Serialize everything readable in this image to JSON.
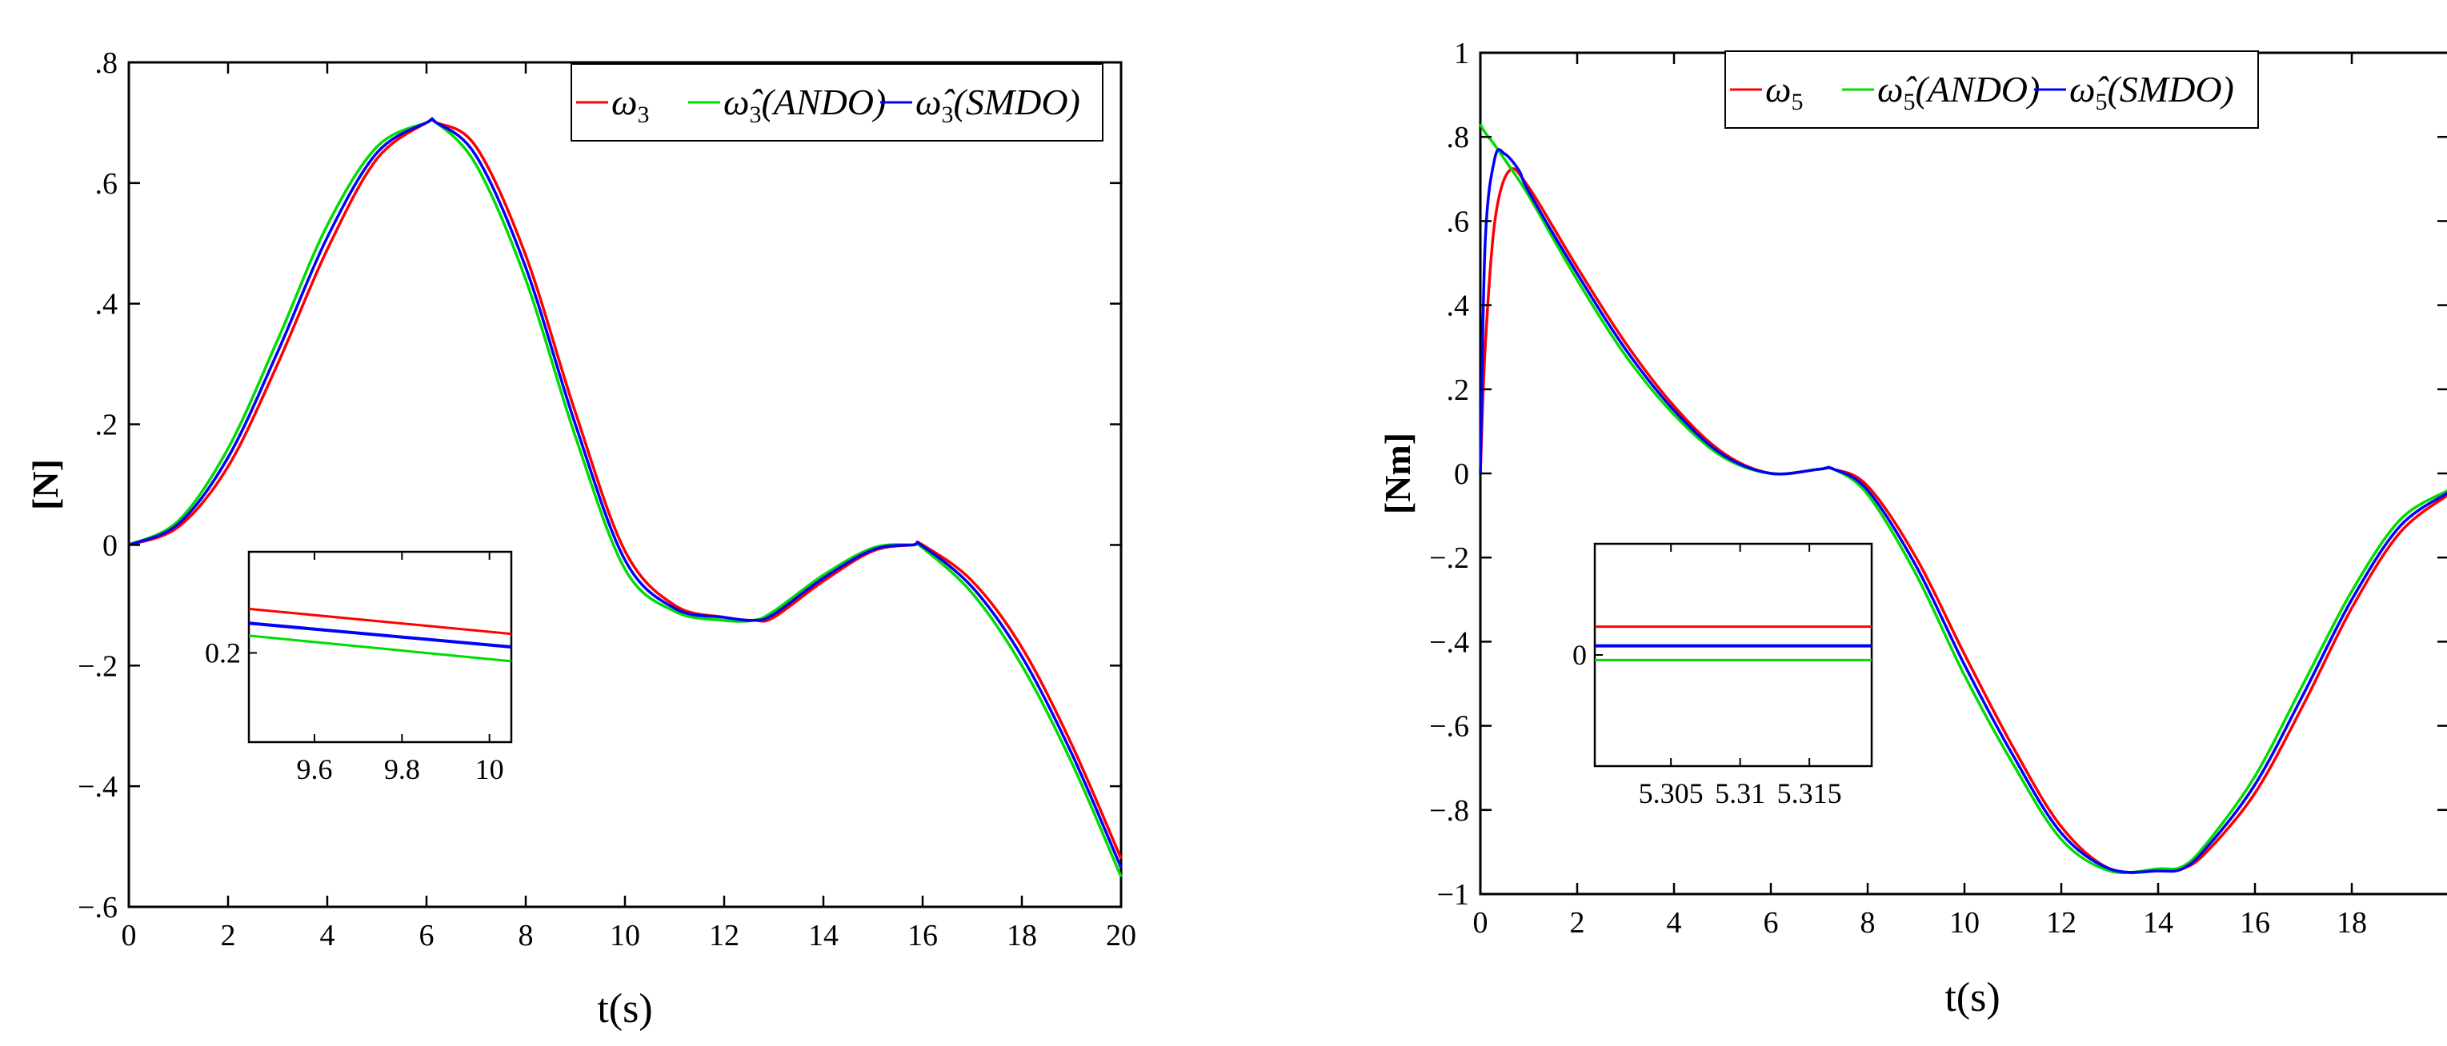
{
  "chart_data": [
    {
      "type": "line",
      "xlabel": "t(s)",
      "ylabel": "[N]",
      "xlim": [
        0,
        20
      ],
      "ylim": [
        -0.6,
        0.8
      ],
      "xticks": [
        0,
        2,
        4,
        6,
        8,
        10,
        12,
        14,
        16,
        18,
        20
      ],
      "yticks": [
        -0.6,
        -0.4,
        -0.2,
        0,
        0.2,
        0.4,
        0.6,
        0.8
      ],
      "grid": false,
      "legend_position": "top-right",
      "colors": [
        "#ff0000",
        "#00dd00",
        "#0000ff"
      ],
      "series": [
        {
          "name": "ω3",
          "x": [
            0,
            1,
            2,
            3,
            4,
            5,
            6,
            6.2,
            7,
            8,
            9,
            10,
            11,
            12,
            12.6,
            13,
            14,
            15,
            15.8,
            16,
            17,
            18,
            19,
            20
          ],
          "values": [
            0,
            0.03,
            0.13,
            0.3,
            0.49,
            0.64,
            0.7,
            0.7,
            0.66,
            0.48,
            0.22,
            -0.01,
            -0.1,
            -0.12,
            -0.125,
            -0.12,
            -0.06,
            -0.01,
            0,
            0,
            -0.06,
            -0.17,
            -0.33,
            -0.52
          ]
        },
        {
          "name": "ω̂3(ANDO)",
          "x": [
            0,
            1,
            2,
            3,
            4,
            5,
            6,
            6.2,
            7,
            8,
            9,
            10,
            11,
            12,
            12.6,
            13,
            14,
            15,
            15.8,
            16,
            17,
            18,
            19,
            20
          ],
          "values": [
            0,
            0.04,
            0.16,
            0.34,
            0.53,
            0.66,
            0.7,
            0.7,
            0.63,
            0.44,
            0.18,
            -0.04,
            -0.11,
            -0.125,
            -0.125,
            -0.11,
            -0.05,
            -0.005,
            0,
            -0.005,
            -0.08,
            -0.2,
            -0.36,
            -0.55
          ]
        },
        {
          "name": "ω̂3(SMDO)",
          "x": [
            0,
            1,
            2,
            3,
            4,
            5,
            6,
            6.2,
            7,
            8,
            9,
            10,
            11,
            12,
            12.6,
            13,
            14,
            15,
            15.8,
            16,
            17,
            18,
            19,
            20
          ],
          "values": [
            0,
            0.035,
            0.145,
            0.32,
            0.51,
            0.65,
            0.7,
            0.7,
            0.645,
            0.46,
            0.2,
            -0.025,
            -0.105,
            -0.12,
            -0.125,
            -0.115,
            -0.055,
            -0.008,
            0,
            -0.002,
            -0.07,
            -0.185,
            -0.345,
            -0.535
          ]
        }
      ],
      "inset": {
        "xlim": [
          9.45,
          10.05
        ],
        "ylim": [
          0.05,
          0.37
        ],
        "xticks": [
          9.6,
          9.8,
          10
        ],
        "yticks": [
          0.2
        ],
        "series": [
          {
            "name": "ω3",
            "x": [
              9.45,
              10.05
            ],
            "values": [
              0.274,
              0.232
            ]
          },
          {
            "name": "ω̂3(ANDO)",
            "x": [
              9.45,
              10.05
            ],
            "values": [
              0.229,
              0.186
            ]
          },
          {
            "name": "ω̂3(SMDO)",
            "x": [
              9.45,
              10.05
            ],
            "values": [
              0.25,
              0.21
            ]
          }
        ]
      }
    },
    {
      "type": "line",
      "xlabel": "t(s)",
      "ylabel": "[Nm]",
      "xlim": [
        0,
        20
      ],
      "ylim": [
        -1,
        1
      ],
      "xticks": [
        0,
        2,
        4,
        6,
        8,
        10,
        12,
        14,
        16,
        18
      ],
      "yticks": [
        -1,
        -0.8,
        -0.6,
        -0.4,
        -0.2,
        0,
        0.2,
        0.4,
        0.6,
        0.8,
        1
      ],
      "grid": false,
      "legend_position": "top-center",
      "colors": [
        "#ff0000",
        "#00dd00",
        "#0000ff"
      ],
      "series": [
        {
          "name": "ω5",
          "x": [
            0,
            0.1,
            0.3,
            0.6,
            1,
            2,
            3,
            4,
            5,
            6,
            7,
            7.3,
            8,
            9,
            10,
            11,
            12,
            13,
            14,
            14.5,
            15,
            16,
            17,
            18,
            19,
            20
          ],
          "values": [
            0,
            0.3,
            0.6,
            0.72,
            0.68,
            0.49,
            0.31,
            0.16,
            0.05,
            0.0,
            0.01,
            0.01,
            -0.03,
            -0.2,
            -0.43,
            -0.65,
            -0.84,
            -0.94,
            -0.945,
            -0.94,
            -0.9,
            -0.76,
            -0.55,
            -0.32,
            -0.14,
            -0.05
          ]
        },
        {
          "name": "ω̂5(ANDO)",
          "x": [
            0,
            0.1,
            0.3,
            0.6,
            1,
            2,
            3,
            4,
            5,
            6,
            7,
            7.3,
            8,
            9,
            10,
            11,
            12,
            13,
            14,
            14.5,
            15,
            16,
            17,
            18,
            19,
            20
          ],
          "values": [
            0.83,
            0.81,
            0.78,
            0.73,
            0.66,
            0.46,
            0.28,
            0.14,
            0.04,
            0.0,
            0.01,
            0.01,
            -0.05,
            -0.24,
            -0.48,
            -0.69,
            -0.87,
            -0.945,
            -0.94,
            -0.935,
            -0.88,
            -0.72,
            -0.5,
            -0.28,
            -0.11,
            -0.04
          ]
        },
        {
          "name": "ω̂5(SMDO)",
          "x": [
            0,
            0.1,
            0.3,
            0.5,
            0.8,
            1,
            2,
            3,
            4,
            5,
            6,
            7,
            7.3,
            8,
            9,
            10,
            11,
            12,
            13,
            14,
            14.5,
            15,
            16,
            17,
            18,
            19,
            20
          ],
          "values": [
            0,
            0.55,
            0.75,
            0.76,
            0.72,
            0.67,
            0.475,
            0.295,
            0.15,
            0.045,
            0.0,
            0.01,
            0.01,
            -0.04,
            -0.22,
            -0.455,
            -0.67,
            -0.855,
            -0.94,
            -0.945,
            -0.94,
            -0.89,
            -0.74,
            -0.525,
            -0.3,
            -0.125,
            -0.045
          ]
        }
      ],
      "inset": {
        "xlim": [
          5.2995,
          5.3195
        ],
        "ylim": [
          -0.011,
          0.011
        ],
        "xticks": [
          5.305,
          5.31,
          5.315
        ],
        "yticks": [
          0
        ],
        "series": [
          {
            "name": "ω5",
            "x": [
              5.2995,
              5.3195
            ],
            "values": [
              0.0028,
              0.0028
            ]
          },
          {
            "name": "ω̂5(ANDO)",
            "x": [
              5.2995,
              5.3195
            ],
            "values": [
              -0.0005,
              -0.0005
            ]
          },
          {
            "name": "ω̂5(SMDO)",
            "x": [
              5.2995,
              5.3195
            ],
            "values": [
              0.0009,
              0.0009
            ]
          }
        ]
      }
    }
  ]
}
